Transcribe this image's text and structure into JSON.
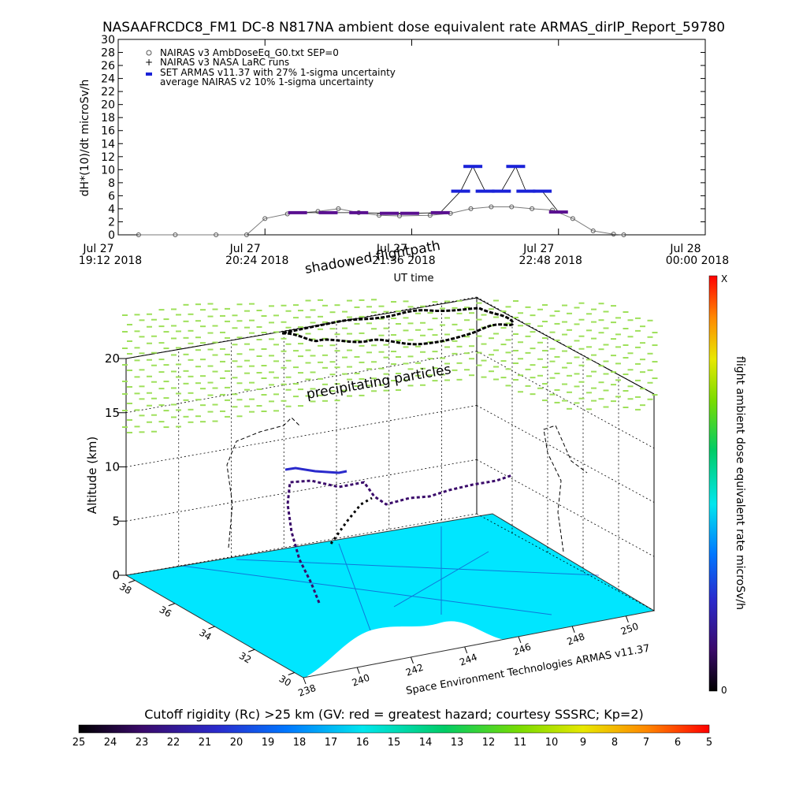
{
  "title": "NASAAFRCDC8_FM1 DC-8   N817NA ambient dose equivalent rate ARMAS_dirIP_Report_59780",
  "top_chart": {
    "ylabel": "dH*(10)/dt microSv/h",
    "xlabel": "UT time",
    "yticks": [
      "0",
      "2",
      "4",
      "6",
      "8",
      "10",
      "12",
      "14",
      "16",
      "18",
      "20",
      "22",
      "24",
      "26",
      "28",
      "30"
    ],
    "xticks": [
      {
        "date": "Jul 27",
        "time": "19:12 2018"
      },
      {
        "date": "Jul 27",
        "time": "20:24 2018"
      },
      {
        "date": "Jul 27",
        "time": "21:36 2018"
      },
      {
        "date": "Jul 27",
        "time": "22:48 2018"
      },
      {
        "date": "Jul 28",
        "time": "00:00 2018"
      }
    ],
    "legend": [
      "NAIRAS v3 AmbDoseEq_G0.txt SEP=0",
      "NAIRAS v3 NASA LaRC runs",
      "SET ARMAS v11.37 with 27% 1-sigma uncertainty",
      "average NAIRAS v2 10% 1-sigma uncertainty"
    ]
  },
  "chart_data": [
    {
      "type": "line",
      "title": "NASAAFRCDC8_FM1 DC-8   N817NA ambient dose equivalent rate ARMAS_dirIP_Report_59780",
      "xlabel": "UT time",
      "ylabel": "dH*(10)/dt microSv/h",
      "ylim": [
        0,
        30
      ],
      "xlim": [
        "2018-07-27 19:12",
        "2018-07-28 00:00"
      ],
      "series": [
        {
          "name": "NAIRAS v3 AmbDoseEq_G0.txt SEP=0",
          "x": [
            "2018-07-27 19:22",
            "2018-07-27 19:40",
            "2018-07-27 20:00",
            "2018-07-27 20:15",
            "2018-07-27 20:24",
            "2018-07-27 20:35",
            "2018-07-27 20:50",
            "2018-07-27 21:00",
            "2018-07-27 21:10",
            "2018-07-27 21:20",
            "2018-07-27 21:30",
            "2018-07-27 21:45",
            "2018-07-27 21:55",
            "2018-07-27 22:05",
            "2018-07-27 22:15",
            "2018-07-27 22:25",
            "2018-07-27 22:35",
            "2018-07-27 22:45",
            "2018-07-27 22:55",
            "2018-07-27 23:05",
            "2018-07-27 23:15",
            "2018-07-27 23:20"
          ],
          "y": [
            0,
            0,
            0,
            0,
            2.5,
            3.2,
            3.6,
            4.0,
            3.4,
            3.0,
            2.9,
            3.0,
            3.3,
            4.0,
            4.3,
            4.3,
            4.0,
            3.8,
            2.5,
            0.6,
            0.1,
            0
          ]
        },
        {
          "name": "SET ARMAS v11.37 with 27% 1-sigma uncertainty",
          "x": [
            "2018-07-27 20:40",
            "2018-07-27 20:55",
            "2018-07-27 21:10",
            "2018-07-27 21:25",
            "2018-07-27 21:35",
            "2018-07-27 21:50",
            "2018-07-27 22:00",
            "2018-07-27 22:06",
            "2018-07-27 22:12",
            "2018-07-27 22:20",
            "2018-07-27 22:27",
            "2018-07-27 22:32",
            "2018-07-27 22:40",
            "2018-07-27 22:48"
          ],
          "y": [
            3.4,
            3.4,
            3.4,
            3.3,
            3.3,
            3.4,
            6.7,
            10.5,
            6.7,
            6.7,
            10.5,
            6.7,
            6.7,
            3.5
          ]
        }
      ]
    },
    {
      "type": "heatmap",
      "title": "Cutoff rigidity (Rc) >25 km (GV: red = greatest hazard; courtesy SSSRC; Kp=2)",
      "zlabel": "Altitude (km)",
      "zticks": [
        0,
        5,
        10,
        15,
        20
      ],
      "lat_ticks": [
        38,
        36,
        34,
        32,
        30
      ],
      "lon_ticks": [
        238,
        240,
        242,
        244,
        246,
        248,
        250
      ],
      "colorbar_ticks": [
        25,
        24,
        23,
        22,
        21,
        20,
        19,
        18,
        17,
        16,
        15,
        14,
        13,
        12,
        11,
        10,
        9,
        8,
        7,
        6,
        5
      ]
    }
  ],
  "three_d": {
    "zlabel": "Altitude (km)",
    "zticks": [
      "0",
      "5",
      "10",
      "15",
      "20"
    ],
    "lat_ticks": [
      "38",
      "36",
      "34",
      "32",
      "30"
    ],
    "lon_ticks": [
      "238",
      "240",
      "242",
      "244",
      "246",
      "248",
      "250"
    ],
    "annot_shadow": "shadowed flightpath",
    "annot_precip": "precipitating particles",
    "credit": "Space Environment Technologies ARMAS v11.37"
  },
  "right_bar": {
    "label": "flight ambient dose equivalent rate microSv/h",
    "top": "X",
    "bottom": "0"
  },
  "bottom_bar": {
    "title": "Cutoff rigidity (Rc) >25 km (GV: red = greatest hazard; courtesy SSSRC; Kp=2)",
    "ticks": [
      "25",
      "24",
      "23",
      "22",
      "21",
      "20",
      "19",
      "18",
      "17",
      "16",
      "15",
      "14",
      "13",
      "12",
      "11",
      "10",
      "9",
      "8",
      "7",
      "6",
      "5"
    ]
  },
  "colors": {
    "nairas": "#7a7a7a",
    "armas_low": "#5a1090",
    "armas_high": "#1a22d8",
    "ocean": "#00e6ff",
    "precip": "#9ee05a"
  }
}
